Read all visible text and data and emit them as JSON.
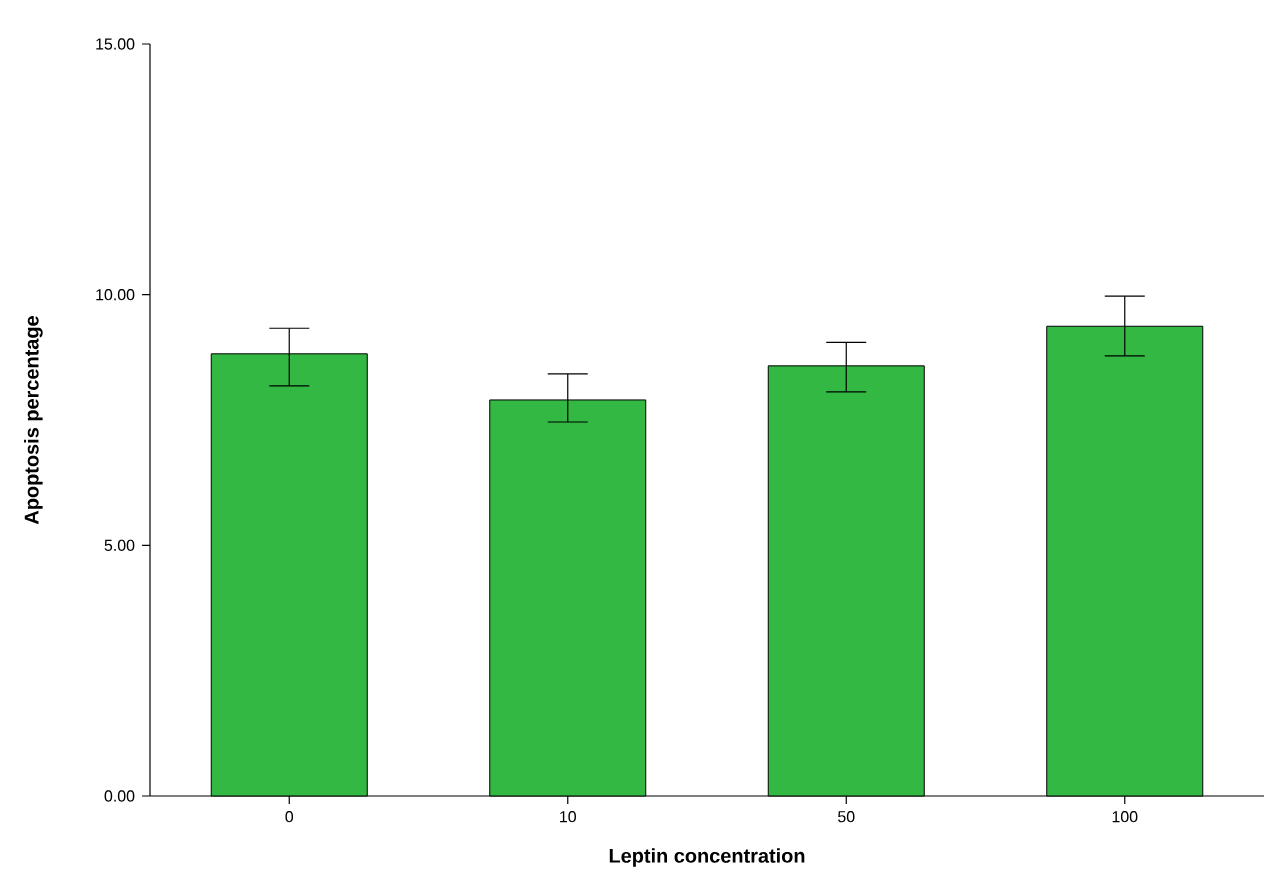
{
  "chart_data": {
    "type": "bar",
    "xlabel": "Leptin concentration",
    "ylabel": "Apoptosis percentage",
    "categories": [
      "0",
      "10",
      "50",
      "100"
    ],
    "values": [
      8.82,
      7.9,
      8.58,
      9.37
    ],
    "errors": [
      [
        8.18,
        9.33
      ],
      [
        7.46,
        8.42
      ],
      [
        8.06,
        9.05
      ],
      [
        8.78,
        9.97
      ]
    ],
    "color": "#33b843",
    "ylim": [
      0,
      15
    ],
    "yticks": [
      {
        "value": 0,
        "label": "0.00"
      },
      {
        "value": 5,
        "label": "5.00"
      },
      {
        "value": 10,
        "label": "10.00"
      },
      {
        "value": 15,
        "label": "15.00"
      }
    ],
    "grid": false,
    "legend": false
  }
}
